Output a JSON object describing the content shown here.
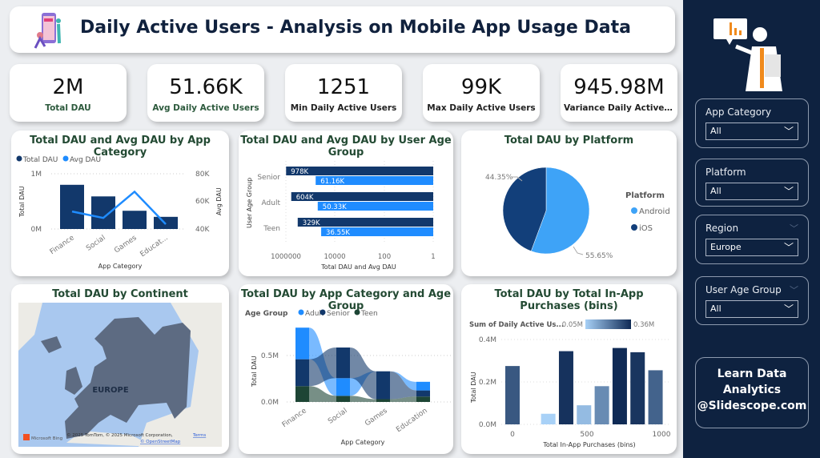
{
  "header": {
    "title": "Daily Active Users - Analysis on Mobile App Usage Data",
    "logo_icon": "phone-users-illustration"
  },
  "kpis": [
    {
      "value": "2M",
      "label": "Total DAU"
    },
    {
      "value": "51.66K",
      "label": "Avg Daily Active Users"
    },
    {
      "value": "1251",
      "label": "Min Daily Active Users"
    },
    {
      "value": "99K",
      "label": "Max Daily Active Users"
    },
    {
      "value": "945.98M",
      "label": "Variance Daily Active U..."
    }
  ],
  "colors": {
    "dark": "#12386b",
    "blue": "#1f8cff",
    "android": "#3ea3f7",
    "ios": "#123f7a",
    "teen": "#1d4535",
    "sidebar": "#0e2240",
    "title": "#234a33"
  },
  "chart_data": [
    {
      "type": "bar+line",
      "title": "Total DAU and Avg DAU by App Category",
      "categories": [
        "Finance",
        "Social",
        "Games",
        "Educat..."
      ],
      "series": [
        {
          "name": "Total DAU",
          "values": [
            800000,
            590000,
            330000,
            220000
          ],
          "axis": "left"
        },
        {
          "name": "Avg DAU",
          "values": [
            52700,
            48000,
            67000,
            43500
          ],
          "axis": "right"
        }
      ],
      "xlabel": "App Category",
      "ylabel": "Total DAU",
      "y2label": "Avg DAU",
      "yticks": [
        "0M",
        "1M"
      ],
      "y2ticks": [
        "40K",
        "60K",
        "80K"
      ],
      "ylim": [
        0,
        1000000
      ],
      "y2lim": [
        40000,
        80000
      ],
      "legend": "top-left"
    },
    {
      "type": "bar",
      "orientation": "horizontal",
      "title": "Total DAU and Avg DAU by User Age Group",
      "categories": [
        "Senior",
        "Adult",
        "Teen"
      ],
      "series": [
        {
          "values": [
            978000,
            604000,
            329000
          ],
          "labels": [
            "978K",
            "604K",
            "329K"
          ]
        },
        {
          "values": [
            61160,
            50330,
            36550
          ],
          "labels": [
            "61.16K",
            "50.33K",
            "36.55K"
          ]
        }
      ],
      "xscale": "log",
      "xreversed": true,
      "xticks": [
        "1000000",
        "10000",
        "100",
        "1"
      ],
      "xlabel": "Total DAU and Avg DAU",
      "ylabel": "User Age Group"
    },
    {
      "type": "pie",
      "title": "Total DAU by Platform",
      "legend_title": "Platform",
      "slices": [
        {
          "name": "Android",
          "value": 55.65,
          "label": "55.65%"
        },
        {
          "name": "iOS",
          "value": 44.35,
          "label": "44.35%"
        }
      ]
    },
    {
      "type": "map",
      "title": "Total DAU by Continent",
      "region_label": "EUROPE",
      "attribution": "© 2025 TomTom, © 2025 Microsoft Corporation,",
      "terms": "Terms",
      "osm": "© OpenStreetMap",
      "provider": "Microsoft Bing"
    },
    {
      "type": "ribbon",
      "title": "Total DAU by App Category and Age Group",
      "legend_title": "Age Group",
      "categories": [
        "Finance",
        "Social",
        "Games",
        "Education"
      ],
      "series": [
        {
          "name": "Adult",
          "values": [
            340000,
            190000,
            0,
            93000
          ]
        },
        {
          "name": "Senior",
          "values": [
            290000,
            330000,
            300000,
            66000
          ]
        },
        {
          "name": "Teen",
          "values": [
            170000,
            66000,
            30000,
            58000
          ]
        }
      ],
      "xlabel": "App Category",
      "ylabel": "Total DAU",
      "yticks": [
        "0.0M",
        "0.5M"
      ],
      "ylim": [
        0,
        800000
      ]
    },
    {
      "type": "bar",
      "title": "Total DAU by Total In-App Purchases (bins)",
      "color_legend": {
        "label": "Sum of Daily Active Us...",
        "min": "0.05M",
        "max": "0.36M"
      },
      "x": [
        0,
        240,
        360,
        480,
        600,
        720,
        840,
        960
      ],
      "values": [
        275000,
        50000,
        345000,
        90000,
        180000,
        360000,
        340000,
        255000
      ],
      "xlabel": "Total In-App Purchases (bins)",
      "ylabel": "Total DAU",
      "xticks": [
        "0",
        "500",
        "1000"
      ],
      "yticks": [
        "0.0M",
        "0.2M",
        "0.4M"
      ],
      "xlim": [
        0,
        1000
      ],
      "ylim": [
        0,
        400000
      ]
    }
  ],
  "sidebar": {
    "slicers": [
      {
        "title": "App Category",
        "value": "All"
      },
      {
        "title": "Platform",
        "value": "All"
      },
      {
        "title": "Region",
        "value": "Europe"
      },
      {
        "title": "User Age Group",
        "value": "All"
      }
    ],
    "learn": [
      "Learn Data",
      "Analytics",
      "@Slidescope.com"
    ]
  }
}
